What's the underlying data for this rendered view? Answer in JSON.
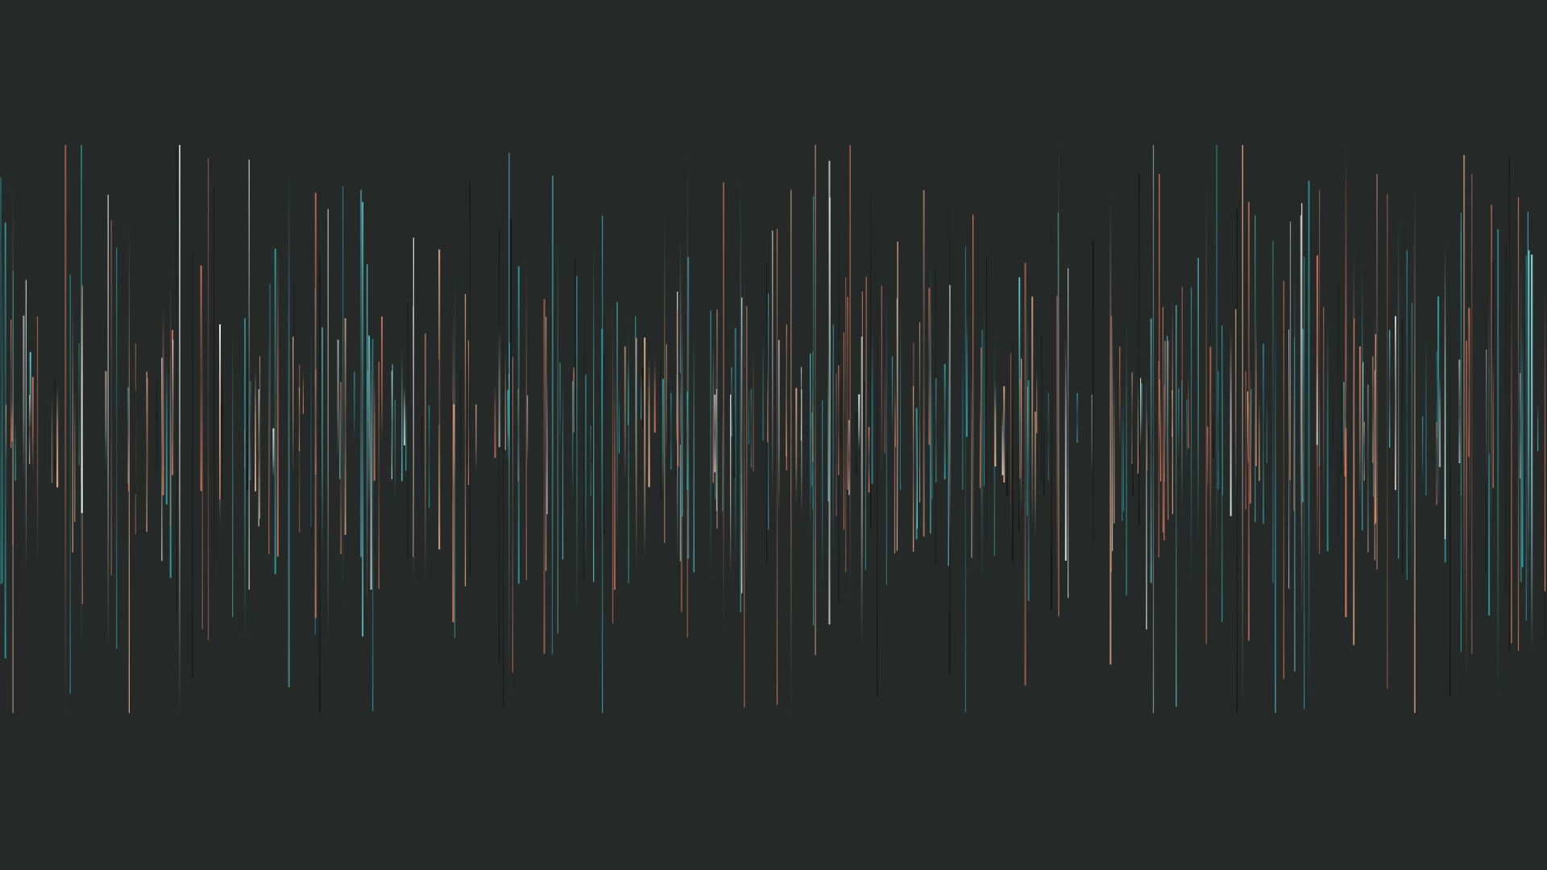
{
  "image": {
    "subject": "abstract-waveform-lines",
    "background_color": "#252a29",
    "palette": {
      "coral": "#e07b5f",
      "peach": "#f0b38f",
      "teal": "#2fa7ad",
      "cyan": "#5fd0d6",
      "white": "#e9efef",
      "dark": "#0f1413"
    },
    "line_count": 480
  }
}
